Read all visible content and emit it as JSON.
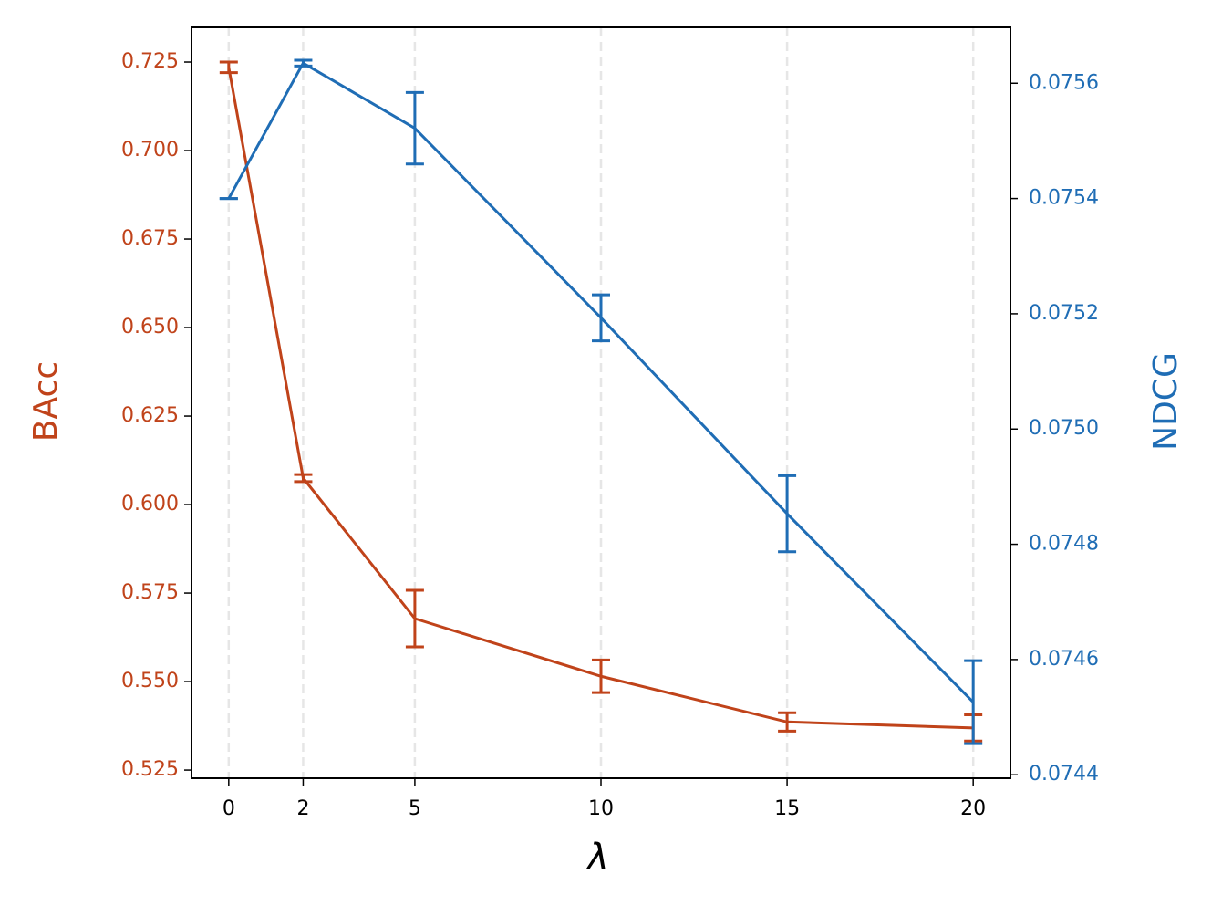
{
  "chart_data": {
    "type": "line",
    "xlabel": "λ",
    "ylabel": "BAcc",
    "y2label": "NDCG",
    "x": [
      0,
      2,
      5,
      10,
      15,
      20
    ],
    "xlim": [
      -1,
      21
    ],
    "xticks": [
      0,
      2,
      5,
      10,
      15,
      20
    ],
    "ylim": [
      0.5227,
      0.7348
    ],
    "yticks": [
      {
        "value": 0.525,
        "label": "0.525"
      },
      {
        "value": 0.55,
        "label": "0.550"
      },
      0.575,
      {
        "value": 0.6,
        "label": "0.600"
      },
      0.625,
      {
        "value": 0.65,
        "label": "0.650"
      },
      0.675,
      {
        "value": 0.7,
        "label": "0.700"
      },
      0.725
    ],
    "y2lim": [
      0.074394,
      0.075697
    ],
    "y2ticks": [
      0.0744,
      0.0746,
      0.0748,
      {
        "value": 0.075,
        "label": "0.0750"
      },
      0.0752,
      0.0754,
      0.0756
    ],
    "grid": true,
    "series": [
      {
        "name": "BAcc",
        "color": "#c0431a",
        "values": [
          0.7235,
          0.6075,
          0.5678,
          0.5515,
          0.5386,
          0.5369
        ],
        "errors": [
          0.0015,
          0.001,
          0.008,
          0.0046,
          0.0026,
          0.0037
        ]
      },
      {
        "name": "NDCG",
        "color": "#1f6db5",
        "axis": "y2",
        "values": [
          0.0754,
          0.075635,
          0.075522,
          0.075193,
          0.074853,
          0.074526
        ],
        "errors": [
          0,
          5e-06,
          6.2e-05,
          4e-05,
          6.6e-05,
          7.2e-05
        ]
      }
    ]
  }
}
